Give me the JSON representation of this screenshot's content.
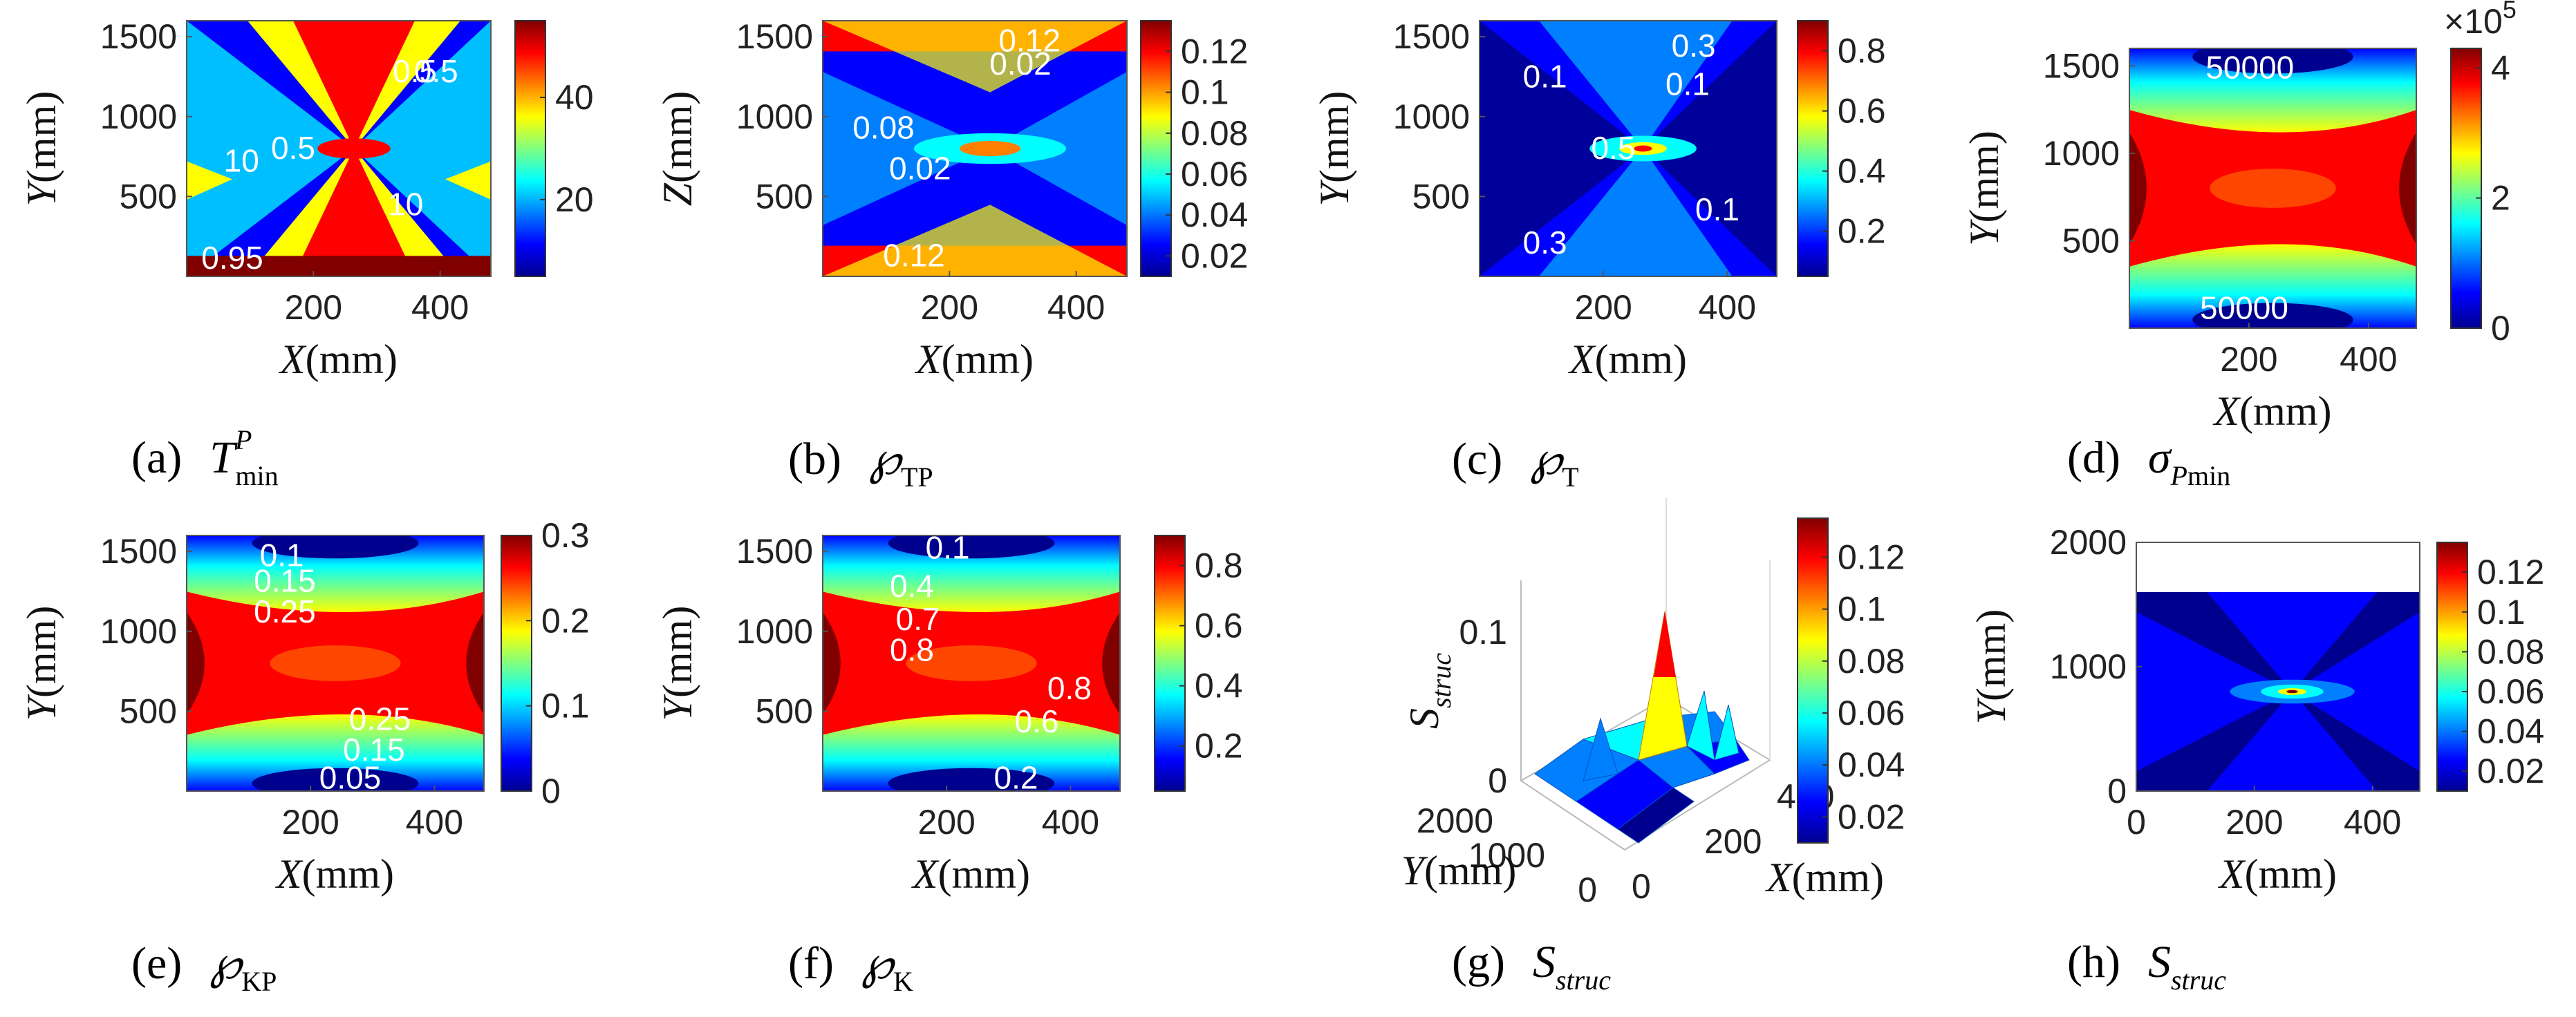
{
  "colors": {
    "colormap": [
      "#00008f",
      "#0000ff",
      "#0080ff",
      "#00ffff",
      "#80ff80",
      "#ffff00",
      "#ff8000",
      "#ff0000",
      "#800000"
    ],
    "contour_label": "#ffffff",
    "axis": "#444444"
  },
  "panels": [
    {
      "id": "a",
      "caption": {
        "letter": "(a)",
        "symbol": "T",
        "sup": "P",
        "sub": "min"
      },
      "chart_data": {
        "type": "heatmap",
        "pattern": "bowtie",
        "xlabel": {
          "var": "X",
          "unit": "(mm)"
        },
        "ylabel": {
          "var": "Y",
          "unit": "(mm)"
        },
        "xlim": [
          0,
          480
        ],
        "ylim": [
          0,
          1600
        ],
        "xticks": [
          200,
          400
        ],
        "yticks": [
          500,
          1000,
          1500
        ],
        "colorbar": {
          "min": 5,
          "max": 55,
          "ticks": [
            "20",
            "40"
          ],
          "exponent": ""
        },
        "contour_labels": [
          "10",
          "0.5",
          "0.5",
          "0.95",
          "10",
          "0.5"
        ]
      }
    },
    {
      "id": "b",
      "caption": {
        "letter": "(b)",
        "symbol": "℘",
        "sub": "TP"
      },
      "chart_data": {
        "type": "heatmap",
        "pattern": "hourglass",
        "xlabel": {
          "var": "X",
          "unit": "(mm)"
        },
        "ylabel": {
          "var": "Z",
          "unit": "(mm)"
        },
        "xlim": [
          0,
          480
        ],
        "ylim": [
          0,
          1600
        ],
        "xticks": [
          200,
          400
        ],
        "yticks": [
          500,
          1000,
          1500
        ],
        "colorbar": {
          "min": 0.01,
          "max": 0.135,
          "ticks": [
            "0.02",
            "0.04",
            "0.06",
            "0.08",
            "0.1",
            "0.12"
          ],
          "exponent": ""
        },
        "contour_labels": [
          "0.12",
          "0.02",
          "0.08",
          "0.02",
          "0.12"
        ]
      }
    },
    {
      "id": "c",
      "caption": {
        "letter": "(c)",
        "symbol": "℘",
        "sub": "T"
      },
      "chart_data": {
        "type": "heatmap",
        "pattern": "spike",
        "xlabel": {
          "var": "X",
          "unit": "(mm)"
        },
        "ylabel": {
          "var": "Y",
          "unit": "(mm)"
        },
        "xlim": [
          0,
          480
        ],
        "ylim": [
          0,
          1600
        ],
        "xticks": [
          200,
          400
        ],
        "yticks": [
          500,
          1000,
          1500
        ],
        "colorbar": {
          "min": 0.05,
          "max": 0.9,
          "ticks": [
            "0.2",
            "0.4",
            "0.6",
            "0.8"
          ],
          "exponent": ""
        },
        "contour_labels": [
          "0.3",
          "0.1",
          "0.1",
          "0.1",
          "0.3",
          "0.5"
        ]
      }
    },
    {
      "id": "d",
      "caption": {
        "letter": "(d)",
        "symbol": "σ",
        "sub_i": "P",
        "sub": "min"
      },
      "chart_data": {
        "type": "heatmap",
        "pattern": "hourglass-hot",
        "xlabel": {
          "var": "X",
          "unit": "(mm)"
        },
        "ylabel": {
          "var": "Y",
          "unit": "(mm)"
        },
        "xlim": [
          0,
          480
        ],
        "ylim": [
          0,
          1600
        ],
        "xticks": [
          200,
          400
        ],
        "yticks": [
          500,
          1000,
          1500
        ],
        "colorbar": {
          "min": 0,
          "max": 4.3,
          "ticks": [
            "0",
            "2",
            "4"
          ],
          "exponent": "×10"
        },
        "exponent_power": "5",
        "contour_labels": [
          "50000",
          "50000"
        ]
      }
    },
    {
      "id": "e",
      "caption": {
        "letter": "(e)",
        "symbol": "℘",
        "sub": "KP"
      },
      "chart_data": {
        "type": "heatmap",
        "pattern": "hourglass-hot",
        "xlabel": {
          "var": "X",
          "unit": "(mm)"
        },
        "ylabel": {
          "var": "Y",
          "unit": "(mm)"
        },
        "xlim": [
          0,
          480
        ],
        "ylim": [
          0,
          1600
        ],
        "xticks": [
          200,
          400
        ],
        "yticks": [
          500,
          1000,
          1500
        ],
        "colorbar": {
          "min": 0,
          "max": 0.3,
          "ticks": [
            "0",
            "0.1",
            "0.2",
            "0.3"
          ],
          "exponent": ""
        },
        "contour_labels": [
          "0.1",
          "0.15",
          "0.25",
          "0.25",
          "0.15",
          "0.05"
        ]
      }
    },
    {
      "id": "f",
      "caption": {
        "letter": "(f)",
        "symbol": "℘",
        "sub": "K"
      },
      "chart_data": {
        "type": "heatmap",
        "pattern": "hourglass-hot",
        "xlabel": {
          "var": "X",
          "unit": "(mm)"
        },
        "ylabel": {
          "var": "Y",
          "unit": "(mm)"
        },
        "xlim": [
          0,
          480
        ],
        "ylim": [
          0,
          1600
        ],
        "xticks": [
          200,
          400
        ],
        "yticks": [
          500,
          1000,
          1500
        ],
        "colorbar": {
          "min": 0.05,
          "max": 0.9,
          "ticks": [
            "0.2",
            "0.4",
            "0.6",
            "0.8"
          ],
          "exponent": ""
        },
        "contour_labels": [
          "0.1",
          "0.4",
          "0.7",
          "0.8",
          "0.8",
          "0.6",
          "0.2"
        ]
      }
    },
    {
      "id": "g",
      "caption": {
        "letter": "(g)",
        "symbol": "S",
        "sub_i": "struc"
      },
      "chart_data": {
        "type": "surface",
        "xlabel": {
          "var": "X",
          "unit": "(mm)"
        },
        "ylabel": {
          "var": "Y",
          "unit": "(mm)"
        },
        "zlabel": {
          "var": "S",
          "sub": "struc"
        },
        "xlim": [
          0,
          480
        ],
        "ylim": [
          0,
          2000
        ],
        "zlim": [
          0,
          0.135
        ],
        "xticks": [
          "0",
          "200",
          "400"
        ],
        "yticks": [
          "0",
          "1000",
          "2000"
        ],
        "zticks": [
          "0",
          "0.1"
        ],
        "colorbar": {
          "min": 0.01,
          "max": 0.135,
          "ticks": [
            "0.02",
            "0.04",
            "0.06",
            "0.08",
            "0.1",
            "0.12"
          ],
          "exponent": ""
        }
      }
    },
    {
      "id": "h",
      "caption": {
        "letter": "(h)",
        "symbol": "S",
        "sub_i": "struc"
      },
      "chart_data": {
        "type": "heatmap",
        "pattern": "diamond",
        "xlabel": {
          "var": "X",
          "unit": "(mm)"
        },
        "ylabel": {
          "var": "Y",
          "unit": "(mm)"
        },
        "xlim": [
          0,
          480
        ],
        "ylim": [
          0,
          2000
        ],
        "data_extent": {
          "x": [
            0,
            480
          ],
          "y": [
            0,
            1600
          ]
        },
        "xticks": [
          0,
          200,
          400
        ],
        "yticks": [
          0,
          1000,
          2000
        ],
        "colorbar": {
          "min": 0.01,
          "max": 0.135,
          "ticks": [
            "0.02",
            "0.04",
            "0.06",
            "0.08",
            "0.1",
            "0.12"
          ],
          "exponent": ""
        },
        "contour_labels": []
      }
    }
  ]
}
